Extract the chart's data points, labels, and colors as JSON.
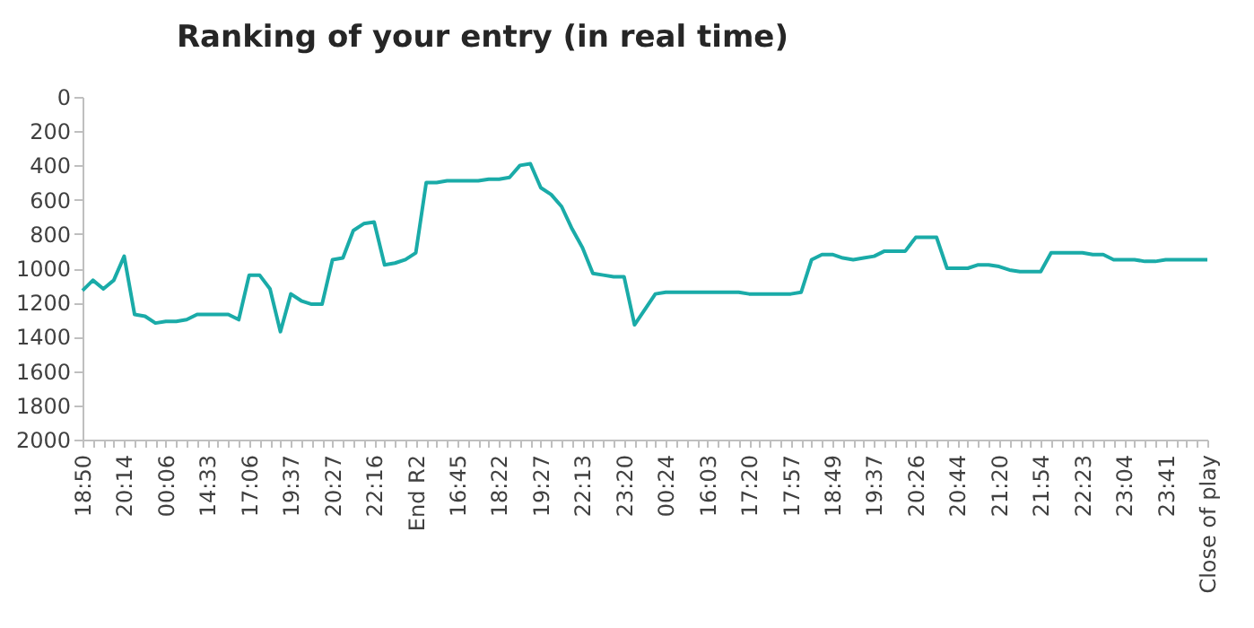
{
  "chart_data": {
    "type": "line",
    "title": "Ranking of your entry (in real time)",
    "categories": [
      "18:50",
      null,
      null,
      null,
      "20:14",
      null,
      null,
      null,
      "00:06",
      null,
      null,
      null,
      "14:33",
      null,
      null,
      null,
      "17:06",
      null,
      null,
      null,
      "19:37",
      null,
      null,
      null,
      "20:27",
      null,
      null,
      null,
      "22:16",
      null,
      null,
      null,
      "End R2",
      null,
      null,
      null,
      "16:45",
      null,
      null,
      null,
      "18:22",
      null,
      null,
      null,
      "19:27",
      null,
      null,
      null,
      "22:13",
      null,
      null,
      null,
      "23:20",
      null,
      null,
      null,
      "00:24",
      null,
      null,
      null,
      "16:03",
      null,
      null,
      null,
      "17:20",
      null,
      null,
      null,
      "17:57",
      null,
      null,
      null,
      "18:49",
      null,
      null,
      null,
      "19:37",
      null,
      null,
      null,
      "20:26",
      null,
      null,
      null,
      "20:44",
      null,
      null,
      null,
      "21:20",
      null,
      null,
      null,
      "21:54",
      null,
      null,
      null,
      "22:23",
      null,
      null,
      null,
      "23:04",
      null,
      null,
      null,
      "23:41",
      null,
      null,
      null,
      "Close of play"
    ],
    "series": [
      {
        "color": "#1aaba8",
        "values": [
          1130,
          1070,
          1120,
          1070,
          930,
          1270,
          1280,
          1320,
          1310,
          1310,
          1300,
          1270,
          1270,
          1270,
          1270,
          1300,
          1040,
          1040,
          1120,
          1370,
          1150,
          1190,
          1210,
          1210,
          950,
          940,
          780,
          740,
          730,
          980,
          970,
          950,
          910,
          500,
          500,
          490,
          490,
          490,
          490,
          480,
          480,
          470,
          400,
          390,
          530,
          570,
          640,
          770,
          880,
          1030,
          1040,
          1050,
          1050,
          1330,
          1240,
          1150,
          1140,
          1140,
          1140,
          1140,
          1140,
          1140,
          1140,
          1140,
          1150,
          1150,
          1150,
          1150,
          1150,
          1140,
          950,
          920,
          920,
          940,
          950,
          940,
          930,
          900,
          900,
          900,
          820,
          820,
          820,
          1000,
          1000,
          1000,
          980,
          980,
          990,
          1010,
          1020,
          1020,
          1020,
          910,
          910,
          910,
          910,
          920,
          920,
          950,
          950,
          950,
          960,
          960,
          950,
          950,
          950,
          950,
          950
        ]
      }
    ],
    "ylim": [
      2000,
      0
    ],
    "yticks": [
      0,
      200,
      400,
      600,
      800,
      1000,
      1200,
      1400,
      1600,
      1800,
      2000
    ],
    "grid": false,
    "marker": "none",
    "line_style": "solid"
  }
}
